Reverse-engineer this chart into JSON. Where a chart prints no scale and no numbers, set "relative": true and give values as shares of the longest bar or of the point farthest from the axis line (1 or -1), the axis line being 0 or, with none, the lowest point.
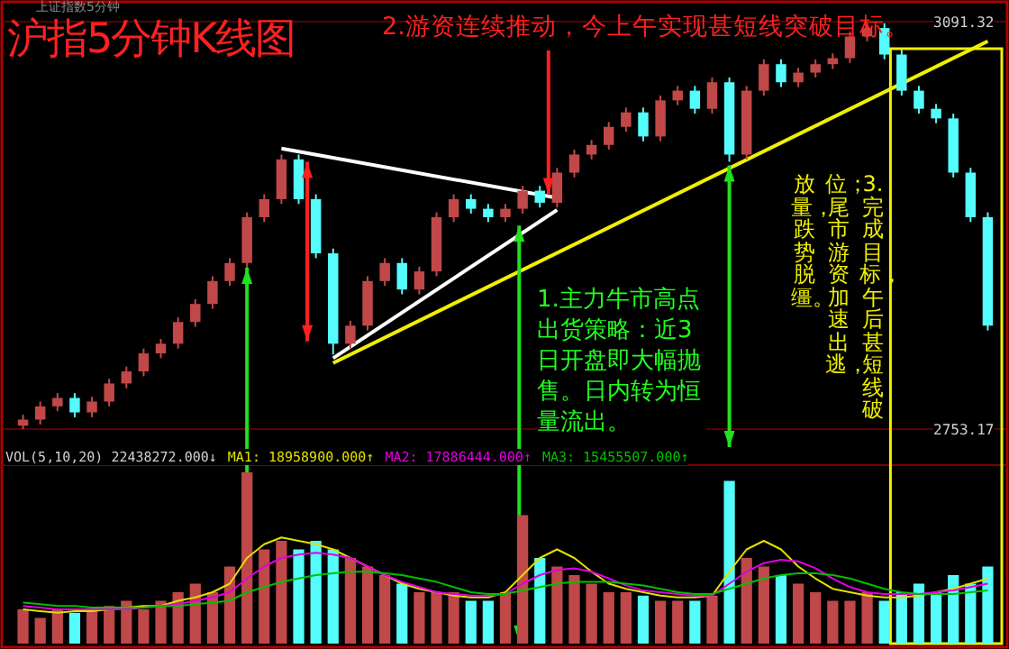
{
  "chart_data": [
    {
      "type": "candlestick",
      "title": "沪指5分钟K线图",
      "categories": [
        null,
        null,
        null,
        null,
        null,
        null,
        null,
        null,
        null,
        null,
        null,
        null,
        null,
        null,
        null,
        null,
        null,
        null,
        null,
        null,
        null,
        null,
        null,
        null,
        null,
        null,
        null,
        null,
        null,
        null,
        null,
        null,
        null,
        null,
        null,
        null,
        null,
        null,
        null,
        null,
        null,
        null,
        null,
        null,
        null,
        null,
        null,
        null,
        null,
        null,
        null,
        null,
        null,
        null,
        null,
        null,
        null
      ],
      "ohlc": [
        [
          2756,
          2765,
          2753.17,
          2761
        ],
        [
          2761,
          2776,
          2757,
          2772
        ],
        [
          2772,
          2783,
          2768,
          2779
        ],
        [
          2779,
          2783,
          2763,
          2767
        ],
        [
          2767,
          2780,
          2763,
          2776
        ],
        [
          2776,
          2795,
          2772,
          2791
        ],
        [
          2791,
          2805,
          2787,
          2801
        ],
        [
          2801,
          2820,
          2797,
          2816
        ],
        [
          2816,
          2828,
          2812,
          2824
        ],
        [
          2824,
          2846,
          2820,
          2842
        ],
        [
          2842,
          2861,
          2838,
          2857
        ],
        [
          2857,
          2880,
          2853,
          2876
        ],
        [
          2876,
          2895,
          2872,
          2891
        ],
        [
          2891,
          2933,
          2887,
          2929
        ],
        [
          2929,
          2948,
          2925,
          2944
        ],
        [
          2944,
          2981,
          2940,
          2977
        ],
        [
          2977,
          2981,
          2940,
          2944
        ],
        [
          2944,
          2948,
          2895,
          2899
        ],
        [
          2899,
          2903,
          2815,
          2824
        ],
        [
          2824,
          2843,
          2820,
          2839
        ],
        [
          2839,
          2880,
          2835,
          2876
        ],
        [
          2876,
          2895,
          2872,
          2891
        ],
        [
          2891,
          2895,
          2865,
          2869
        ],
        [
          2869,
          2888,
          2865,
          2884
        ],
        [
          2884,
          2933,
          2880,
          2929
        ],
        [
          2929,
          2948,
          2925,
          2944
        ],
        [
          2944,
          2948,
          2932,
          2936
        ],
        [
          2936,
          2940,
          2925,
          2929
        ],
        [
          2929,
          2940,
          2925,
          2936
        ],
        [
          2936,
          2955,
          2932,
          2951
        ],
        [
          2951,
          2955,
          2937,
          2941
        ],
        [
          2941,
          2970,
          2937,
          2966
        ],
        [
          2966,
          2985,
          2962,
          2981
        ],
        [
          2981,
          2993,
          2977,
          2989
        ],
        [
          2989,
          3008,
          2985,
          3004
        ],
        [
          3004,
          3020,
          3000,
          3016
        ],
        [
          3016,
          3020,
          2992,
          2996
        ],
        [
          2996,
          3030,
          2992,
          3026
        ],
        [
          3026,
          3038,
          3022,
          3034
        ],
        [
          3034,
          3038,
          3015,
          3019
        ],
        [
          3019,
          3045,
          3015,
          3041
        ],
        [
          3041,
          3045,
          2975,
          2981
        ],
        [
          2981,
          3038,
          2977,
          3034
        ],
        [
          3034,
          3060,
          3030,
          3056
        ],
        [
          3056,
          3060,
          3037,
          3041
        ],
        [
          3041,
          3053,
          3037,
          3049
        ],
        [
          3049,
          3060,
          3045,
          3056
        ],
        [
          3056,
          3065,
          3052,
          3061
        ],
        [
          3061,
          3083,
          3057,
          3079
        ],
        [
          3079,
          3091.32,
          3075,
          3086
        ],
        [
          3086,
          3090,
          3060,
          3064
        ],
        [
          3064,
          3068,
          3030,
          3034
        ],
        [
          3034,
          3038,
          3015,
          3019
        ],
        [
          3019,
          3023,
          3007,
          3011
        ],
        [
          3011,
          3015,
          2962,
          2966
        ],
        [
          2966,
          2970,
          2925,
          2929
        ],
        [
          2929,
          2933,
          2835,
          2839
        ]
      ],
      "colors": [
        "#c04848",
        "#c04848",
        "#c04848",
        "#54fcfc",
        "#c04848",
        "#c04848",
        "#c04848",
        "#c04848",
        "#c04848",
        "#c04848",
        "#c04848",
        "#c04848",
        "#c04848",
        "#c04848",
        "#c04848",
        "#c04848",
        "#54fcfc",
        "#54fcfc",
        "#54fcfc",
        "#c04848",
        "#c04848",
        "#c04848",
        "#54fcfc",
        "#c04848",
        "#c04848",
        "#c04848",
        "#54fcfc",
        "#54fcfc",
        "#c04848",
        "#c04848",
        "#54fcfc",
        "#c04848",
        "#c04848",
        "#c04848",
        "#c04848",
        "#c04848",
        "#54fcfc",
        "#c04848",
        "#c04848",
        "#54fcfc",
        "#c04848",
        "#54fcfc",
        "#c04848",
        "#c04848",
        "#54fcfc",
        "#c04848",
        "#c04848",
        "#c04848",
        "#c04848",
        "#c04848",
        "#54fcfc",
        "#54fcfc",
        "#54fcfc",
        "#54fcfc",
        "#54fcfc",
        "#54fcfc",
        "#54fcfc"
      ],
      "series": [
        {
          "type": "line",
          "color": "#ffffff",
          "values": [
            null,
            null,
            null,
            null,
            null,
            null,
            null,
            null,
            null,
            null,
            null,
            null,
            null,
            null,
            null,
            2986,
            null,
            null,
            null,
            null,
            null,
            null,
            null,
            null,
            null,
            null,
            null,
            null,
            null,
            null,
            null,
            2945,
            null,
            null,
            null,
            null,
            null,
            null,
            null,
            null,
            null,
            null,
            null,
            null,
            null,
            null,
            null,
            null,
            null,
            null,
            null,
            null,
            null,
            null,
            null,
            null,
            null
          ]
        },
        {
          "type": "line",
          "color": "#ffffff",
          "values": [
            null,
            null,
            null,
            null,
            null,
            null,
            null,
            null,
            null,
            null,
            null,
            null,
            null,
            null,
            null,
            null,
            null,
            null,
            2812,
            null,
            null,
            null,
            null,
            null,
            null,
            null,
            null,
            null,
            null,
            null,
            null,
            2935,
            null,
            null,
            null,
            null,
            null,
            null,
            null,
            null,
            null,
            null,
            null,
            null,
            null,
            null,
            null,
            null,
            null,
            null,
            null,
            null,
            null,
            null,
            null,
            null,
            null
          ]
        },
        {
          "type": "line",
          "color": "#f0f000",
          "values": [
            null,
            null,
            null,
            null,
            null,
            null,
            null,
            null,
            null,
            null,
            null,
            null,
            null,
            null,
            null,
            null,
            null,
            null,
            2808,
            null,
            null,
            null,
            null,
            null,
            null,
            null,
            null,
            null,
            null,
            null,
            null,
            null,
            null,
            null,
            null,
            null,
            null,
            null,
            null,
            null,
            null,
            null,
            null,
            null,
            null,
            null,
            null,
            null,
            null,
            null,
            null,
            null,
            null,
            null,
            null,
            null,
            3075
          ]
        }
      ],
      "ylim": [
        2753.17,
        3091.32
      ],
      "yticks": [
        2753.17,
        3091.32
      ],
      "tick_labels": "y",
      "grid": "y",
      "annotations": [
        "上证指数5分钟",
        "2.游资连续推动，今上午实现甚短线突破目标。",
        "1.主力牛市高点出货策略：近3日开盘即大幅抛售。日内转为恒量流出。",
        "3.完成目标，午后甚短线破",
        "位；尾市游资加速出逃，",
        "放量，跌势脱缰。"
      ]
    },
    {
      "type": "bar",
      "relative": true,
      "title": "VOL(5,10,20) 22438272.000↓",
      "legend": "top left",
      "categories": [
        null,
        null,
        null,
        null,
        null,
        null,
        null,
        null,
        null,
        null,
        null,
        null,
        null,
        null,
        null,
        null,
        null,
        null,
        null,
        null,
        null,
        null,
        null,
        null,
        null,
        null,
        null,
        null,
        null,
        null,
        null,
        null,
        null,
        null,
        null,
        null,
        null,
        null,
        null,
        null,
        null,
        null,
        null,
        null,
        null,
        null,
        null,
        null,
        null,
        null,
        null,
        null,
        null,
        null,
        null,
        null,
        null
      ],
      "series": [
        {
          "values": [
            0.2,
            0.15,
            0.2,
            0.18,
            0.2,
            0.22,
            0.25,
            0.2,
            0.25,
            0.3,
            0.35,
            0.3,
            0.45,
            1.0,
            0.55,
            0.6,
            0.55,
            0.6,
            0.55,
            0.5,
            0.45,
            0.4,
            0.35,
            0.3,
            0.3,
            0.3,
            0.25,
            0.25,
            0.3,
            0.75,
            0.5,
            0.45,
            0.4,
            0.35,
            0.3,
            0.3,
            0.28,
            0.25,
            0.25,
            0.25,
            0.28,
            0.95,
            0.5,
            0.45,
            0.4,
            0.35,
            0.3,
            0.25,
            0.25,
            0.3,
            0.25,
            0.3,
            0.35,
            0.3,
            0.4,
            0.35,
            0.45
          ],
          "colors": [
            "#c04848",
            "#c04848",
            "#c04848",
            "#54fcfc",
            "#c04848",
            "#c04848",
            "#c04848",
            "#c04848",
            "#c04848",
            "#c04848",
            "#c04848",
            "#c04848",
            "#c04848",
            "#c04848",
            "#c04848",
            "#c04848",
            "#54fcfc",
            "#54fcfc",
            "#54fcfc",
            "#c04848",
            "#c04848",
            "#c04848",
            "#54fcfc",
            "#c04848",
            "#c04848",
            "#c04848",
            "#54fcfc",
            "#54fcfc",
            "#c04848",
            "#c04848",
            "#54fcfc",
            "#c04848",
            "#c04848",
            "#c04848",
            "#c04848",
            "#c04848",
            "#54fcfc",
            "#c04848",
            "#c04848",
            "#54fcfc",
            "#c04848",
            "#54fcfc",
            "#c04848",
            "#c04848",
            "#54fcfc",
            "#c04848",
            "#c04848",
            "#c04848",
            "#c04848",
            "#c04848",
            "#54fcfc",
            "#54fcfc",
            "#54fcfc",
            "#54fcfc",
            "#54fcfc",
            "#54fcfc",
            "#54fcfc"
          ]
        },
        {
          "type": "line",
          "name": "MA1: 18958900.000↑",
          "color": "#e0e000",
          "values": [
            0.2,
            0.19,
            0.18,
            0.19,
            0.19,
            0.2,
            0.21,
            0.22,
            0.22,
            0.25,
            0.27,
            0.3,
            0.35,
            0.5,
            0.58,
            0.62,
            0.6,
            0.58,
            0.55,
            0.5,
            0.45,
            0.4,
            0.35,
            0.32,
            0.3,
            0.28,
            0.27,
            0.27,
            0.3,
            0.4,
            0.5,
            0.55,
            0.5,
            0.42,
            0.35,
            0.32,
            0.3,
            0.28,
            0.27,
            0.27,
            0.28,
            0.42,
            0.55,
            0.6,
            0.55,
            0.45,
            0.38,
            0.32,
            0.3,
            0.28,
            0.27,
            0.27,
            0.28,
            0.3,
            0.32,
            0.35,
            0.38
          ]
        },
        {
          "type": "line",
          "name": "MA2: 17886444.000↑",
          "color": "#e000e0",
          "values": [
            0.22,
            0.21,
            0.2,
            0.2,
            0.2,
            0.2,
            0.2,
            0.21,
            0.22,
            0.23,
            0.25,
            0.27,
            0.3,
            0.38,
            0.45,
            0.5,
            0.52,
            0.53,
            0.52,
            0.5,
            0.45,
            0.4,
            0.36,
            0.33,
            0.3,
            0.29,
            0.28,
            0.28,
            0.29,
            0.35,
            0.4,
            0.43,
            0.44,
            0.42,
            0.38,
            0.34,
            0.31,
            0.3,
            0.29,
            0.28,
            0.28,
            0.35,
            0.42,
            0.47,
            0.49,
            0.48,
            0.44,
            0.38,
            0.33,
            0.3,
            0.29,
            0.29,
            0.29,
            0.3,
            0.31,
            0.33,
            0.35
          ]
        },
        {
          "type": "line",
          "name": "MA3: 15455507.000↑",
          "color": "#00c000",
          "values": [
            0.24,
            0.23,
            0.22,
            0.22,
            0.21,
            0.21,
            0.21,
            0.21,
            0.22,
            0.22,
            0.23,
            0.24,
            0.25,
            0.3,
            0.33,
            0.36,
            0.38,
            0.4,
            0.41,
            0.42,
            0.42,
            0.41,
            0.4,
            0.38,
            0.36,
            0.33,
            0.3,
            0.29,
            0.29,
            0.31,
            0.33,
            0.35,
            0.36,
            0.36,
            0.36,
            0.35,
            0.34,
            0.32,
            0.3,
            0.29,
            0.29,
            0.32,
            0.35,
            0.38,
            0.4,
            0.41,
            0.41,
            0.4,
            0.38,
            0.35,
            0.32,
            0.3,
            0.29,
            0.29,
            0.29,
            0.3,
            0.31
          ]
        }
      ]
    }
  ]
}
